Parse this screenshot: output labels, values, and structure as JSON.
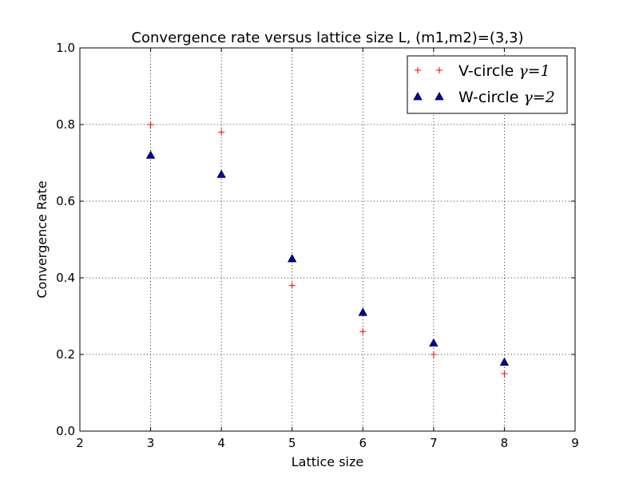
{
  "chart_data": {
    "type": "scatter",
    "title": "Convergence rate versus lattice size L, (m1,m2)=(3,3)",
    "xlabel": "Lattice size",
    "ylabel": "Convergence Rate",
    "xlim": [
      2,
      9
    ],
    "ylim": [
      0.0,
      1.0
    ],
    "x_ticks": [
      "2",
      "3",
      "4",
      "5",
      "6",
      "7",
      "8",
      "9"
    ],
    "y_ticks": [
      "0.0",
      "0.2",
      "0.4",
      "0.6",
      "0.8",
      "1.0"
    ],
    "grid": true,
    "legend_position": "top-right",
    "series": [
      {
        "name_prefix": "V-circle",
        "name_math": "γ=1",
        "marker": "plus",
        "color": "#ff0000",
        "x": [
          3,
          4,
          5,
          6,
          7,
          8
        ],
        "y": [
          0.8,
          0.78,
          0.38,
          0.26,
          0.2,
          0.15
        ]
      },
      {
        "name_prefix": "W-circle",
        "name_math": "γ=2",
        "marker": "triangle",
        "color": "#0000bf",
        "x": [
          3,
          4,
          5,
          6,
          7,
          8
        ],
        "y": [
          0.72,
          0.67,
          0.45,
          0.31,
          0.23,
          0.18
        ]
      }
    ]
  }
}
